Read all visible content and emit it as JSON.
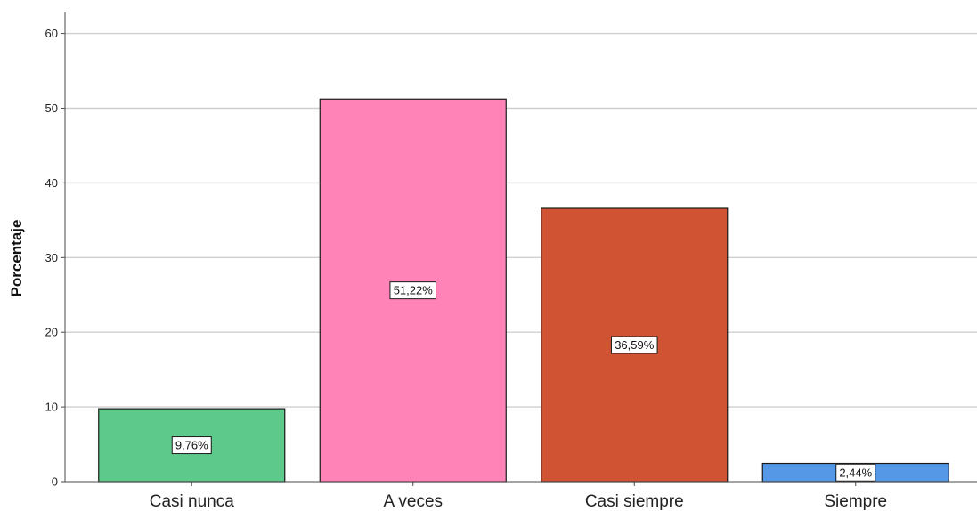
{
  "chart_data": {
    "type": "bar",
    "categories": [
      "Casi nunca",
      "A veces",
      "Casi siempre",
      "Siempre"
    ],
    "values": [
      9.76,
      51.22,
      36.59,
      2.44
    ],
    "data_labels": [
      "9,76%",
      "51,22%",
      "36,59%",
      "2,44%"
    ],
    "colors": [
      "#5dc98b",
      "#ff83b7",
      "#d05333",
      "#5599e6"
    ],
    "ylabel": "Porcentaje",
    "xlabel": "",
    "ylim": [
      0,
      63
    ],
    "yticks": [
      0,
      10,
      20,
      30,
      40,
      50,
      60
    ],
    "grid": true
  }
}
